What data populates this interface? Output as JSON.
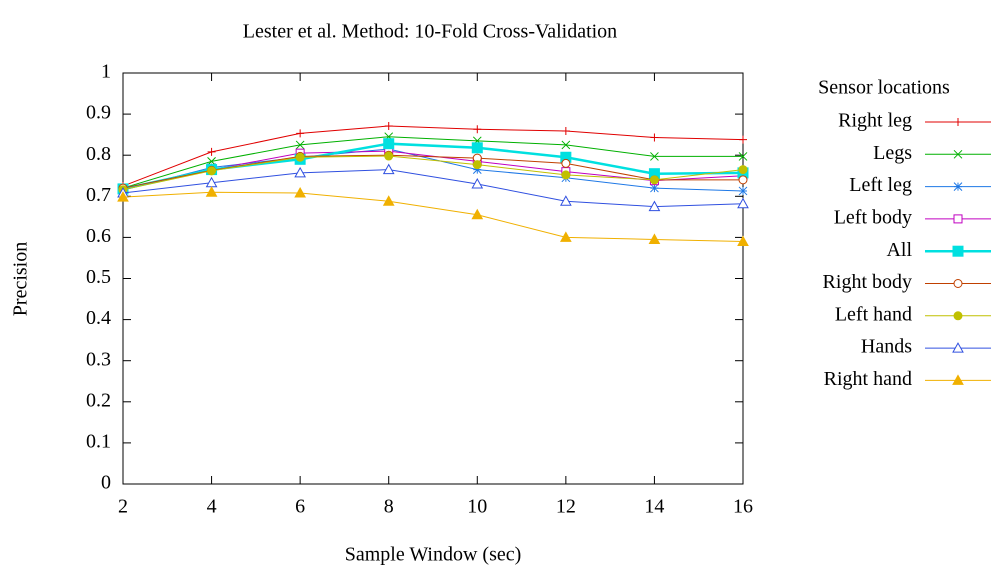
{
  "chart_data": {
    "type": "line",
    "title": "Lester et al. Method: 10-Fold Cross-Validation",
    "x_label": "Sample Window (sec)",
    "y_label": "Precision",
    "legend_title": "Sensor locations",
    "legend": "outside-right",
    "x": [
      2,
      4,
      6,
      8,
      10,
      12,
      14,
      16
    ],
    "xlim": [
      2,
      16
    ],
    "xticks": [
      2,
      4,
      6,
      8,
      10,
      12,
      14,
      16
    ],
    "ylim": [
      0,
      1
    ],
    "yticks": [
      0,
      0.1,
      0.2,
      0.3,
      0.4,
      0.5,
      0.6,
      0.7,
      0.8,
      0.9,
      1
    ],
    "series": [
      {
        "name": "Right leg",
        "color": "#e00000",
        "marker": "plus",
        "line_width": 1,
        "values": [
          0.725,
          0.808,
          0.853,
          0.871,
          0.863,
          0.859,
          0.843,
          0.838
        ]
      },
      {
        "name": "Legs",
        "color": "#00b000",
        "marker": "cross",
        "line_width": 1,
        "values": [
          0.72,
          0.785,
          0.825,
          0.845,
          0.835,
          0.825,
          0.797,
          0.797
        ]
      },
      {
        "name": "Left leg",
        "color": "#1e78e6",
        "marker": "star",
        "line_width": 1,
        "values": [
          0.715,
          0.77,
          0.795,
          0.815,
          0.765,
          0.745,
          0.72,
          0.713
        ]
      },
      {
        "name": "Left body",
        "color": "#c000c0",
        "marker": "square-open",
        "line_width": 1,
        "values": [
          0.718,
          0.765,
          0.805,
          0.81,
          0.785,
          0.76,
          0.738,
          0.75
        ]
      },
      {
        "name": "All",
        "color": "#00e0e0",
        "marker": "square-filled",
        "line_width": 2.5,
        "values": [
          0.718,
          0.765,
          0.79,
          0.828,
          0.818,
          0.795,
          0.755,
          0.757
        ]
      },
      {
        "name": "Right body",
        "color": "#c04000",
        "marker": "circle-open",
        "line_width": 1,
        "values": [
          0.72,
          0.763,
          0.797,
          0.8,
          0.793,
          0.78,
          0.74,
          0.74
        ]
      },
      {
        "name": "Left hand",
        "color": "#c0c000",
        "marker": "circle-filled",
        "line_width": 1,
        "values": [
          0.716,
          0.762,
          0.795,
          0.798,
          0.777,
          0.752,
          0.74,
          0.765
        ]
      },
      {
        "name": "Hands",
        "color": "#3050e0",
        "marker": "triangle-open",
        "line_width": 1,
        "values": [
          0.708,
          0.733,
          0.757,
          0.765,
          0.73,
          0.688,
          0.675,
          0.682
        ]
      },
      {
        "name": "Right hand",
        "color": "#f0b000",
        "marker": "triangle-filled",
        "line_width": 1,
        "values": [
          0.698,
          0.71,
          0.708,
          0.688,
          0.655,
          0.6,
          0.595,
          0.59
        ]
      }
    ]
  }
}
